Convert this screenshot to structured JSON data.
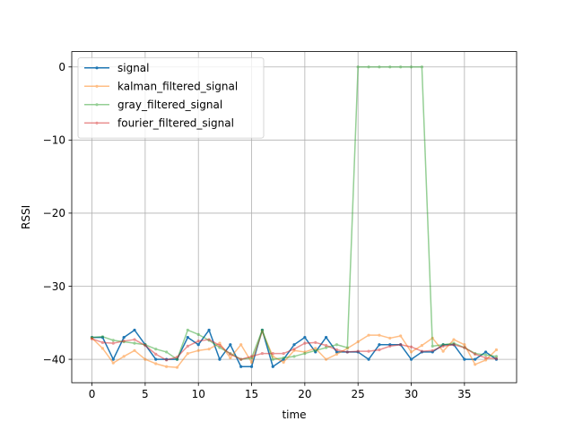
{
  "chart_data": {
    "type": "line",
    "title": "",
    "xlabel": "time",
    "ylabel": "RSSI",
    "xlim": [
      -1.9,
      39.9
    ],
    "ylim": [
      -43.2,
      2.1
    ],
    "xticks": [
      0,
      5,
      10,
      15,
      20,
      25,
      30,
      35
    ],
    "yticks": [
      0,
      -10,
      -20,
      -30,
      -40
    ],
    "grid": true,
    "legend_position": "upper-left",
    "x": [
      0,
      1,
      2,
      3,
      4,
      5,
      6,
      7,
      8,
      9,
      10,
      11,
      12,
      13,
      14,
      15,
      16,
      17,
      18,
      19,
      20,
      21,
      22,
      23,
      24,
      25,
      26,
      27,
      28,
      29,
      30,
      31,
      32,
      33,
      34,
      35,
      36,
      37,
      38
    ],
    "series": [
      {
        "name": "signal",
        "color": "#1f77b4",
        "alpha": 1.0,
        "linewidth": 1.5,
        "values": [
          -37,
          -37,
          -40,
          -37,
          -36,
          -38,
          -40,
          -40,
          -40,
          -37,
          -38,
          -36,
          -40,
          -38,
          -41,
          -41,
          -36,
          -41,
          -40,
          -38,
          -37,
          -39,
          -37,
          -39,
          -39,
          -39,
          -40,
          -38,
          -38,
          -38,
          -40,
          -39,
          -39,
          -38,
          -38,
          -40,
          -40,
          -39,
          -40
        ]
      },
      {
        "name": "kalman_filtered_signal",
        "color": "#ff7f0e",
        "alpha": 0.5,
        "linewidth": 1.5,
        "values": [
          -37.1,
          -38.5,
          -40.5,
          -39.6,
          -38.8,
          -40.0,
          -40.6,
          -41.0,
          -41.1,
          -39.2,
          -38.8,
          -38.6,
          -37.8,
          -39.8,
          -38.0,
          -40.4,
          -36.2,
          -39.6,
          -40.4,
          -38.8,
          -39.0,
          -38.5,
          -40.0,
          -39.3,
          -38.5,
          -37.6,
          -36.7,
          -36.7,
          -37.1,
          -36.8,
          -39.0,
          -38.1,
          -37.1,
          -38.9,
          -37.3,
          -38.0,
          -40.7,
          -40.1,
          -38.7
        ]
      },
      {
        "name": "gray_filtered_signal",
        "color": "#2ca02c",
        "alpha": 0.5,
        "linewidth": 1.5,
        "values": [
          -37.0,
          -36.9,
          -37.4,
          -37.6,
          -37.8,
          -38.0,
          -38.6,
          -39.0,
          -40.0,
          -36.0,
          -36.6,
          -37.4,
          -38.4,
          -39.2,
          -40.0,
          -39.8,
          -36.0,
          -40.0,
          -39.8,
          -39.6,
          -39.2,
          -38.8,
          -38.4,
          -38.0,
          -38.4,
          0,
          0,
          0,
          0,
          0,
          0,
          0,
          -38.2,
          -38.0,
          -37.8,
          -38.4,
          -39.2,
          -39.4,
          -39.6
        ]
      },
      {
        "name": "fourier_filtered_signal",
        "color": "#d62728",
        "alpha": 0.5,
        "linewidth": 1.5,
        "values": [
          -37.2,
          -37.7,
          -37.8,
          -37.5,
          -37.3,
          -38.1,
          -39.3,
          -40.1,
          -39.7,
          -38.2,
          -37.5,
          -37.3,
          -38.1,
          -39.3,
          -40.0,
          -39.6,
          -39.2,
          -39.2,
          -39.2,
          -38.6,
          -37.8,
          -37.7,
          -38.1,
          -38.7,
          -39.0,
          -38.9,
          -38.9,
          -38.7,
          -38.2,
          -38.0,
          -38.3,
          -38.9,
          -38.8,
          -38.2,
          -38.0,
          -38.4,
          -39.3,
          -39.8,
          -39.9
        ]
      }
    ]
  }
}
